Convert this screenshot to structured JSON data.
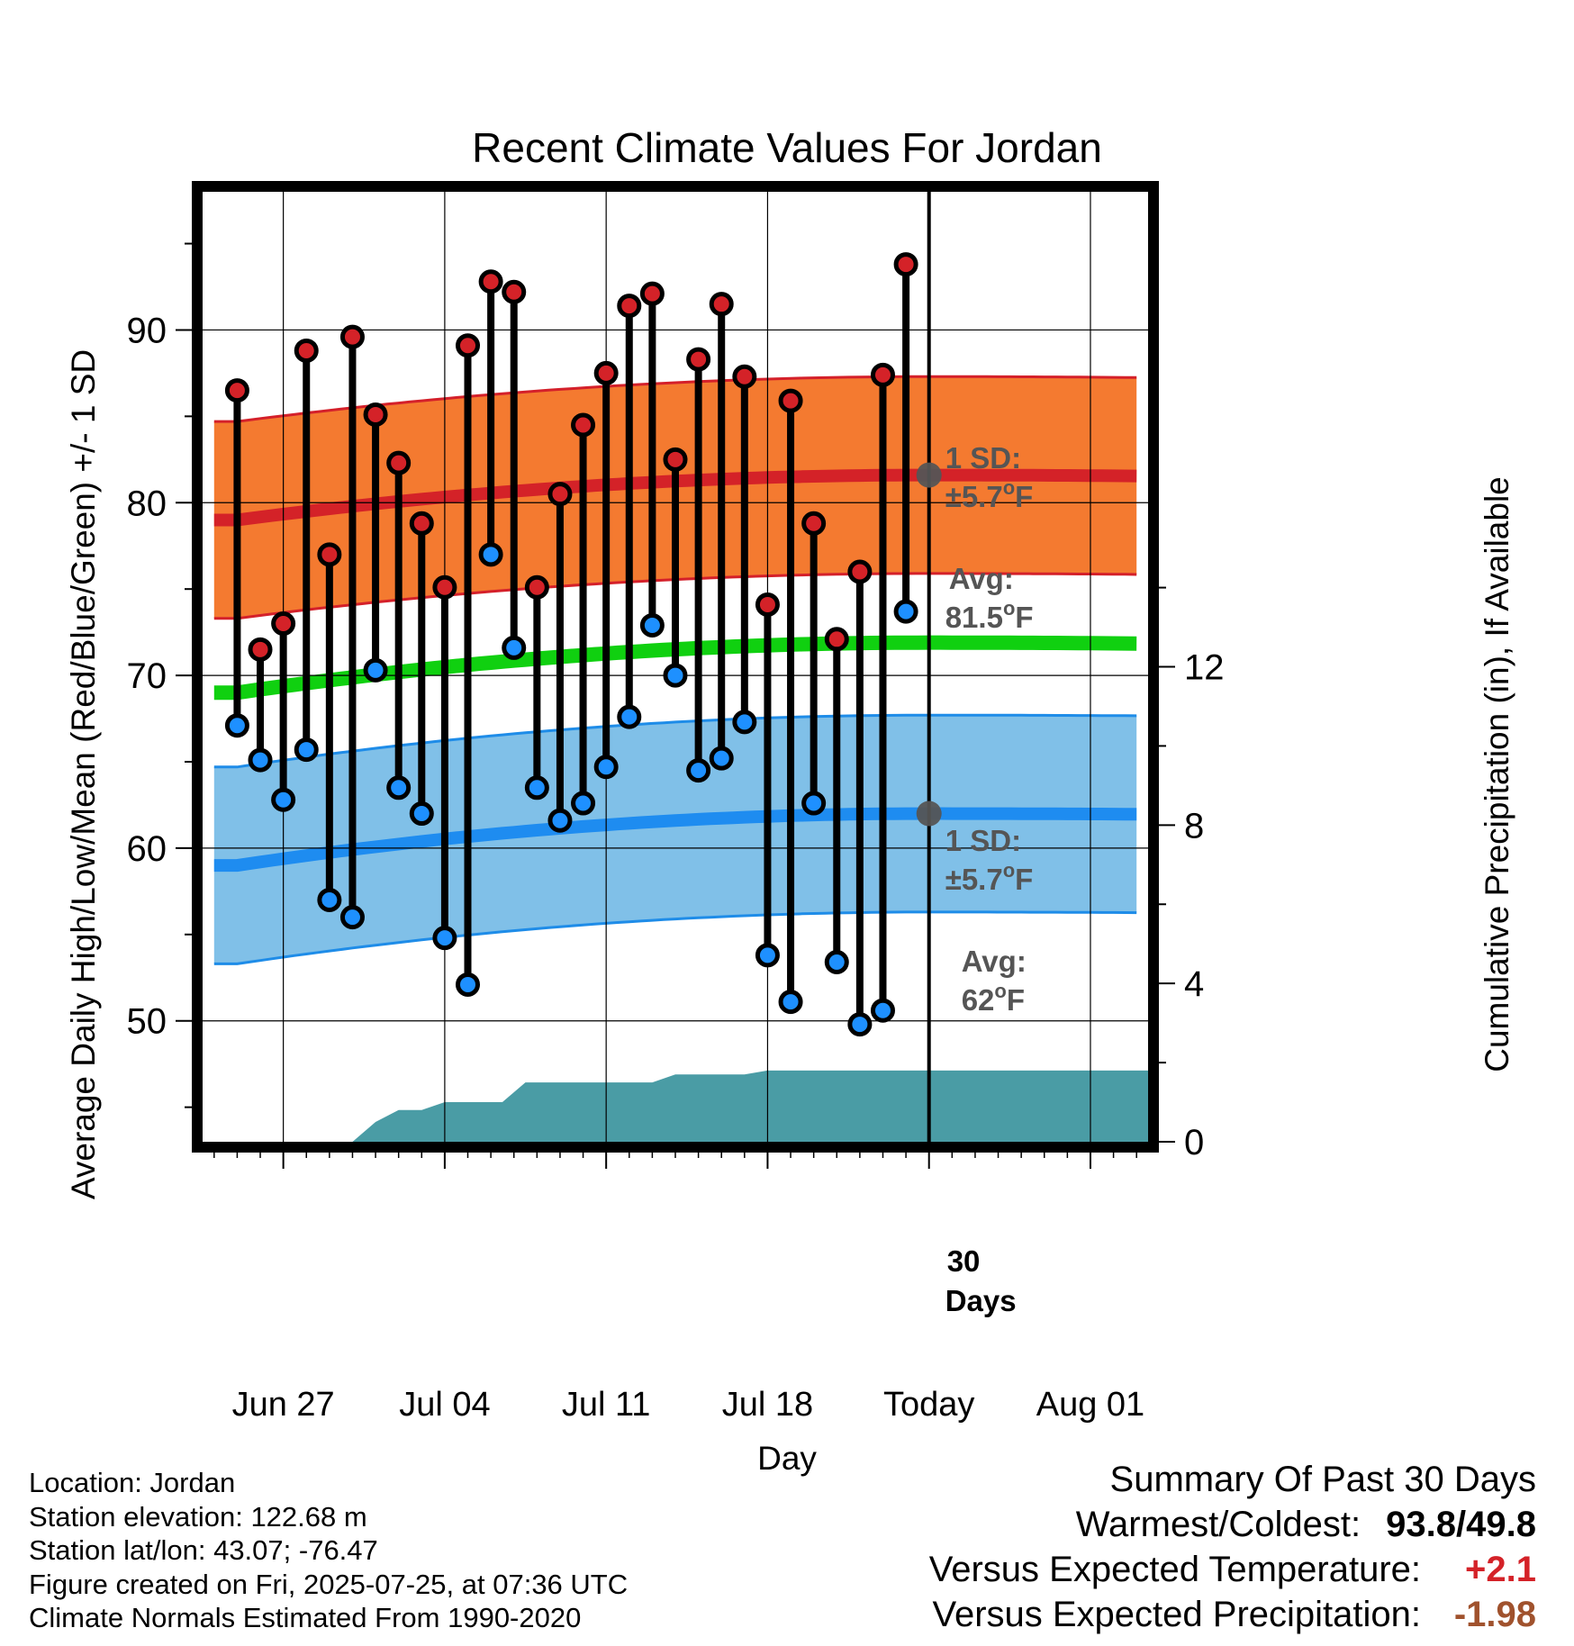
{
  "chart_data": {
    "type": "line",
    "title": "Recent Climate Values For Jordan",
    "xlabel": "Day",
    "ylabel": "Average Daily High/Low/Mean (Red/Blue/Green) +/- 1 SD",
    "y2label": "Cumulative Precipitation (in), If Available",
    "x_tick_labels": [
      "Jun 27",
      "Jul 04",
      "Jul 11",
      "Jul 18",
      "Today",
      "Aug 01"
    ],
    "y_ticks": [
      50,
      60,
      70,
      80,
      90
    ],
    "y2_ticks": [
      0,
      4,
      8,
      12
    ],
    "x_range_days": [
      -31.5,
      9.5
    ],
    "ylim": [
      43,
      98
    ],
    "y2lim": [
      0,
      24
    ],
    "highs": [
      86.5,
      71.5,
      73.0,
      88.8,
      77.0,
      89.6,
      85.1,
      82.3,
      78.8,
      75.1,
      89.1,
      92.8,
      92.2,
      75.1,
      80.5,
      84.5,
      87.5,
      91.4,
      92.1,
      82.5,
      88.3,
      91.5,
      87.3,
      74.1,
      85.9,
      78.8,
      72.1,
      76.0,
      87.4,
      93.8
    ],
    "lows": [
      67.1,
      65.1,
      62.8,
      65.7,
      57.0,
      56.0,
      70.3,
      63.5,
      62.0,
      54.8,
      52.1,
      77.0,
      71.6,
      63.5,
      61.6,
      62.6,
      64.7,
      67.6,
      72.9,
      70.0,
      64.5,
      65.2,
      67.3,
      53.8,
      51.1,
      62.6,
      53.4,
      49.8,
      50.6,
      73.7
    ],
    "normal_high": {
      "start": 79.0,
      "peak": 81.6,
      "end": 81.0
    },
    "normal_low": {
      "start": 59.0,
      "peak": 62.0,
      "end": 61.6
    },
    "normal_mean": {
      "start": 69.0,
      "peak": 71.9,
      "end": 71.3
    },
    "precip_cumulative": [
      [
        -25.0,
        0.0
      ],
      [
        -24.0,
        0.5
      ],
      [
        -23.0,
        0.8
      ],
      [
        -22.0,
        0.8
      ],
      [
        -21.0,
        1.0
      ],
      [
        -20.0,
        1.0
      ],
      [
        -19.0,
        1.0
      ],
      [
        -18.5,
        1.0
      ],
      [
        -17.5,
        1.5
      ],
      [
        -14.0,
        1.5
      ],
      [
        -13.0,
        1.5
      ],
      [
        -12.0,
        1.5
      ],
      [
        -11.0,
        1.7
      ],
      [
        -10.0,
        1.7
      ],
      [
        -8.0,
        1.7
      ],
      [
        -7.0,
        1.8
      ],
      [
        -6.0,
        1.8
      ],
      [
        9.5,
        1.8
      ]
    ],
    "high_band_label": "1 SD:",
    "high_band_value": "±5.7°F",
    "high_avg_label": "Avg:",
    "high_avg_value": "81.5°F",
    "low_band_label": "1 SD:",
    "low_band_value": "±5.7°F",
    "low_avg_label": "Avg:",
    "low_avg_value": "62°F",
    "precip_label_line1": "30",
    "precip_label_line2": "Days",
    "colors": {
      "high_band": "#f47a30",
      "high_band_edge": "#d4202a",
      "high_line": "#d42228",
      "low_band": "#80c0e8",
      "low_band_edge": "#1e8ce8",
      "low_line": "#1e8cf0",
      "mean_line": "#10d010",
      "precip": "#4a9ca5",
      "high_dot": "#d42228",
      "low_dot": "#1e90ff",
      "annot": "#555555"
    }
  },
  "footer": {
    "location": "Location: Jordan",
    "elevation": "Station elevation: 122.68 m",
    "latlon": "Station lat/lon: 43.07; -76.47",
    "created": "Figure created on Fri, 2025-07-25, at 07:36 UTC",
    "normals": "Climate Normals Estimated From 1990-2020"
  },
  "summary": {
    "title": "Summary Of Past 30 Days",
    "warmest_coldest_label": "Warmest/Coldest:",
    "warmest": "93.8",
    "coldest": "49.8",
    "temp_label": "Versus Expected Temperature:",
    "temp_value": "+2.1",
    "temp_color": "#d42228",
    "precip_label": "Versus Expected Precipitation:",
    "precip_value": "-1.98",
    "precip_color": "#a0522d"
  }
}
